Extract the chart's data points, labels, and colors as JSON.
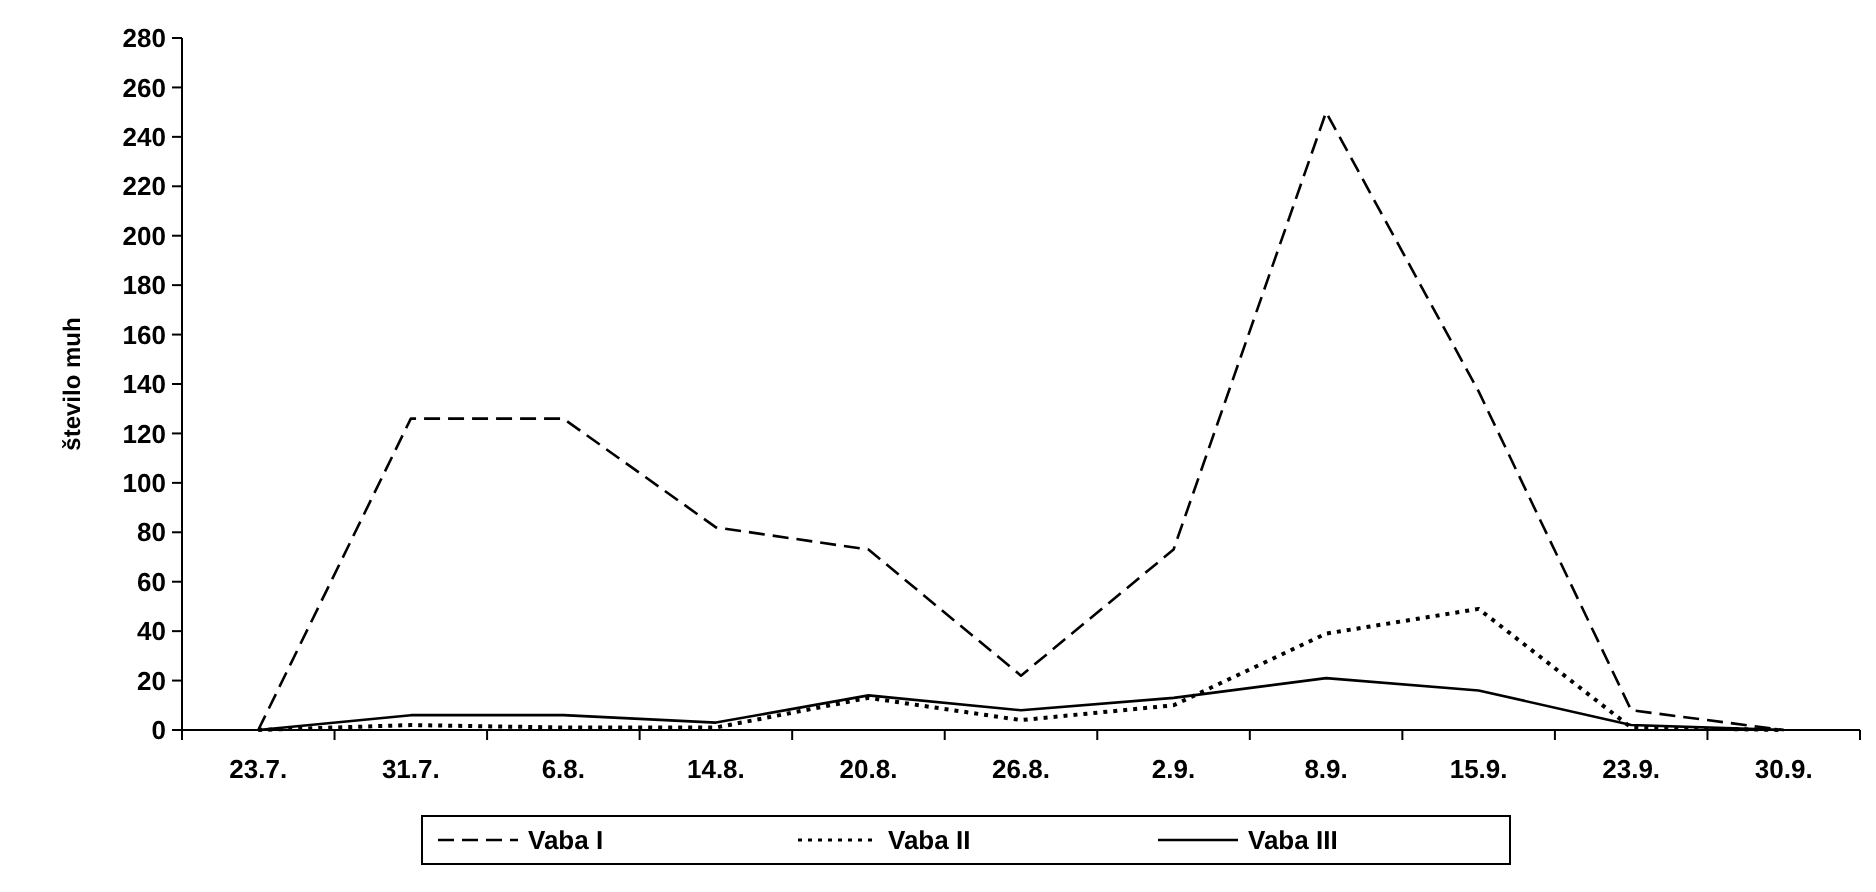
{
  "chart_data": {
    "type": "line",
    "ylabel": "število muh",
    "categories": [
      "23.7.",
      "31.7.",
      "6.8.",
      "14.8.",
      "20.8.",
      "26.8.",
      "2.9.",
      "8.9.",
      "15.9.",
      "23.9.",
      "30.9."
    ],
    "ylim": [
      0,
      280
    ],
    "yticks": [
      0,
      20,
      40,
      60,
      80,
      100,
      120,
      140,
      160,
      180,
      200,
      220,
      240,
      260,
      280
    ],
    "grid": false,
    "legend": "bottom",
    "marker": "none",
    "series": [
      {
        "name": "Vaba I",
        "color": "#000000",
        "line_style": "dashed",
        "values": [
          0,
          126,
          126,
          82,
          73,
          22,
          73,
          250,
          137,
          8,
          0
        ]
      },
      {
        "name": "Vaba II",
        "color": "#000000",
        "line_style": "dotted",
        "values": [
          0,
          2,
          1,
          1,
          13,
          4,
          10,
          39,
          49,
          1,
          0
        ]
      },
      {
        "name": "Vaba III",
        "color": "#000000",
        "line_style": "solid",
        "values": [
          0,
          6,
          6,
          3,
          14,
          8,
          13,
          21,
          16,
          2,
          0
        ]
      }
    ]
  }
}
